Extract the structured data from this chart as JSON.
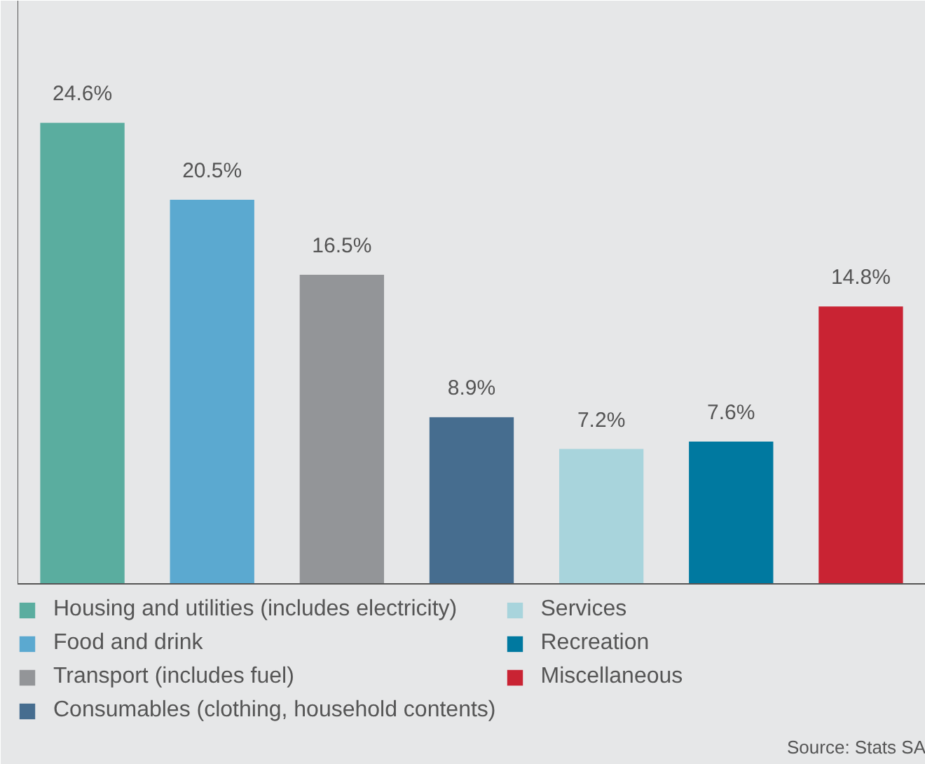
{
  "chart_data": {
    "type": "bar",
    "stacked": true,
    "categories": [
      null,
      null,
      null,
      null,
      null,
      null,
      null
    ],
    "series": [
      {
        "name": "Housing and utilities (includes electricity)",
        "color": "#5aad9f",
        "values": [
          24.6,
          null,
          null,
          null,
          null,
          null,
          null
        ],
        "value_labels": [
          "24.6%",
          null,
          null,
          null,
          null,
          null,
          null
        ]
      },
      {
        "name": "Food and drink",
        "color": "#5ba9d0",
        "values": [
          null,
          20.5,
          null,
          null,
          null,
          null,
          null
        ],
        "value_labels": [
          null,
          "20.5%",
          null,
          null,
          null,
          null,
          null
        ]
      },
      {
        "name": "Transport (includes fuel)",
        "color": "#939598",
        "values": [
          null,
          null,
          16.5,
          null,
          null,
          null,
          null
        ],
        "value_labels": [
          null,
          null,
          "16.5%",
          null,
          null,
          null,
          null
        ]
      },
      {
        "name": "Consumables (clothing, household contents)",
        "color": "#466d8f",
        "values": [
          null,
          null,
          null,
          8.9,
          null,
          null,
          null
        ],
        "value_labels": [
          null,
          null,
          null,
          "8.9%",
          null,
          null,
          null
        ]
      },
      {
        "name": "Services",
        "color": "#a8d4dc",
        "values": [
          null,
          null,
          null,
          null,
          7.2,
          null,
          null
        ],
        "value_labels": [
          null,
          null,
          null,
          null,
          "7.2%",
          null,
          null
        ]
      },
      {
        "name": "Recreation",
        "color": "#0079a0",
        "values": [
          null,
          null,
          null,
          null,
          null,
          7.6,
          null
        ],
        "value_labels": [
          null,
          null,
          null,
          null,
          null,
          "7.6%",
          null
        ]
      },
      {
        "name": "Miscellaneous",
        "color": "#c92333",
        "values": [
          null,
          null,
          null,
          null,
          null,
          null,
          14.8
        ],
        "value_labels": [
          null,
          null,
          null,
          null,
          null,
          null,
          "14.8%"
        ]
      }
    ],
    "legend": "bottom",
    "tick_labels": false,
    "annotations": [
      "Source: Stats SA"
    ]
  }
}
